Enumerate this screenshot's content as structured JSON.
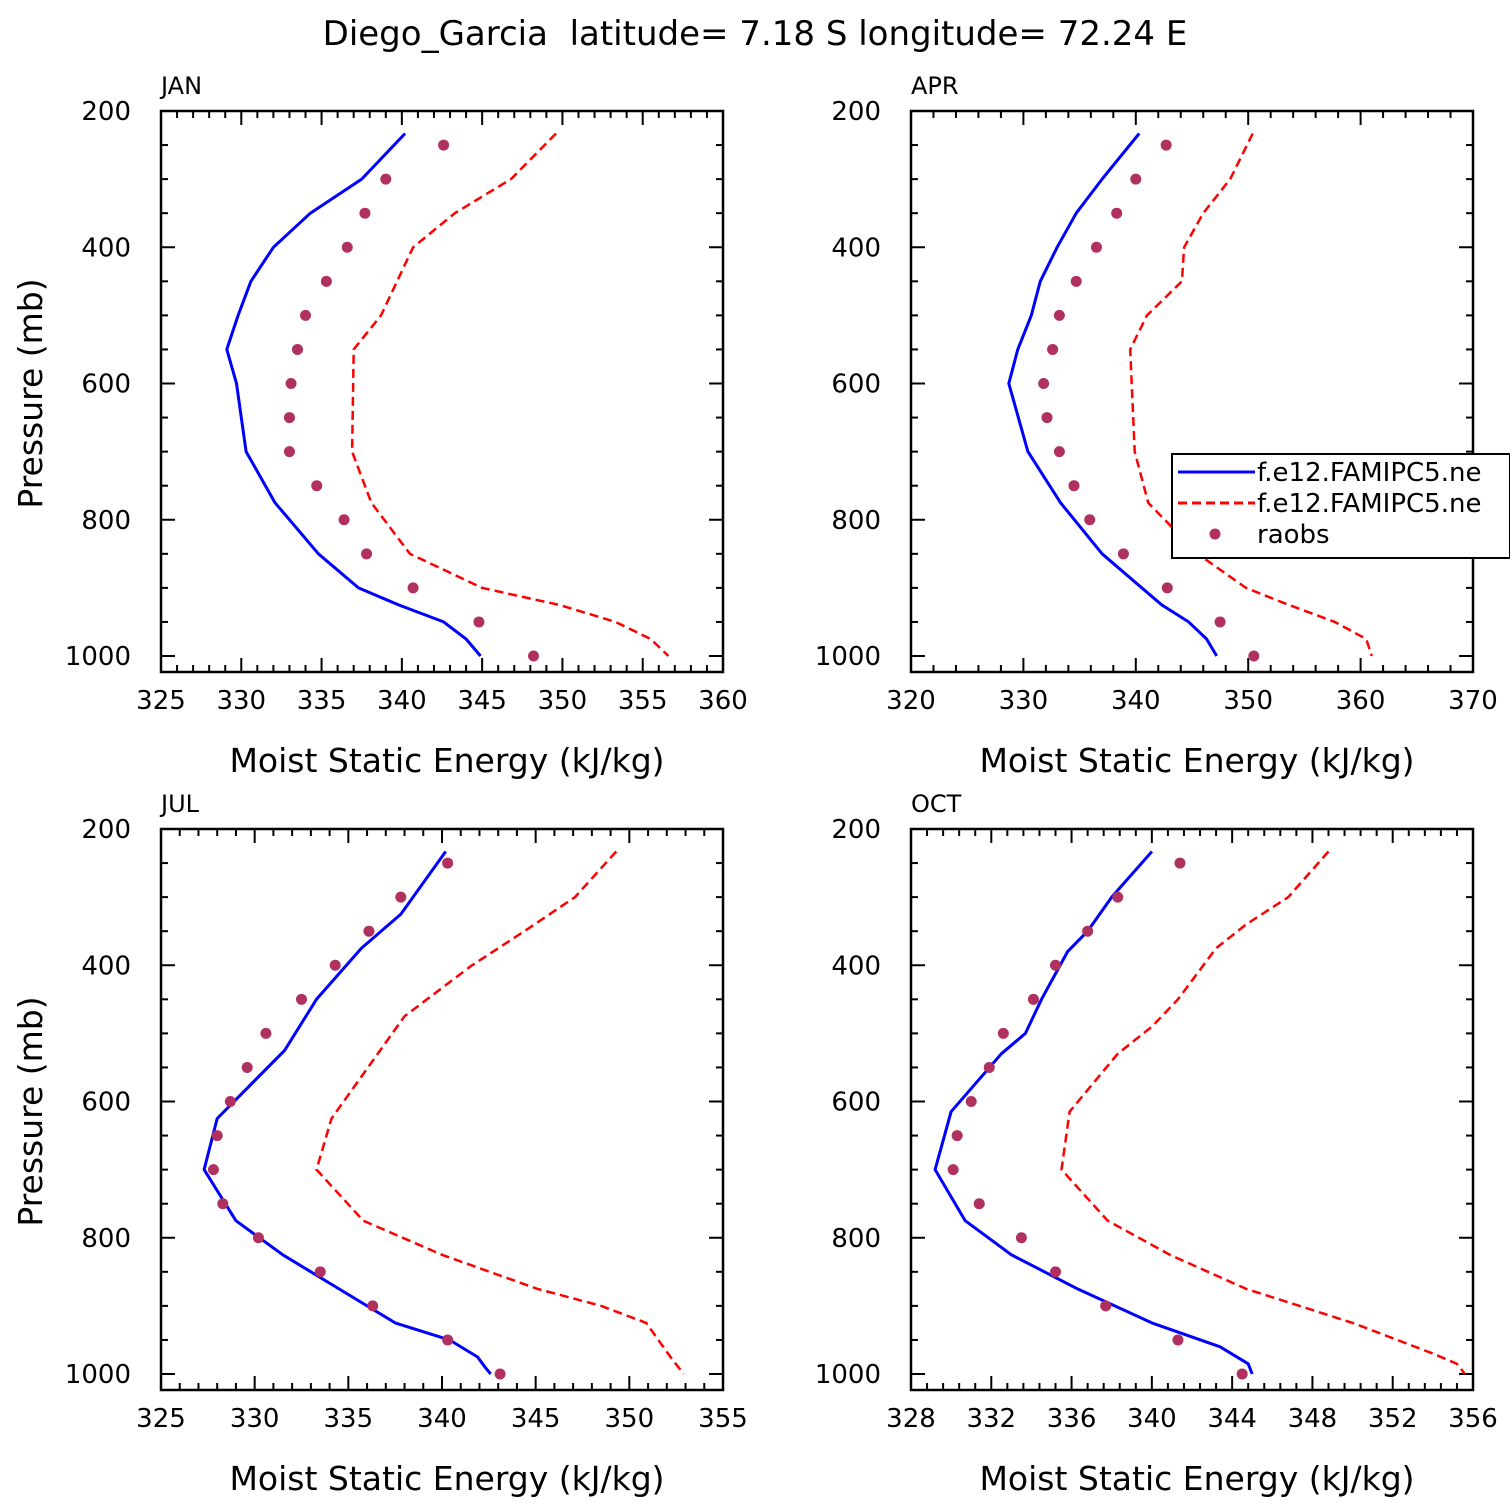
{
  "figure": {
    "title": "Diego_Garcia  latitude= 7.18 S longitude= 72.24 E"
  },
  "colors": {
    "model1": "#0000ff",
    "model2": "#ff0000",
    "obs": "#b03060",
    "axis": "#000000",
    "background": "#ffffff"
  },
  "legend": {
    "panel": "APR",
    "placement": "right edge, middle (clipped)",
    "entries": [
      {
        "label": "f.e12.FAMIPC5.ne",
        "style": "solid-line",
        "color": "#0000ff"
      },
      {
        "label": "f.e12.FAMIPC5.ne",
        "style": "dashed-line",
        "color": "#ff0000"
      },
      {
        "label": "raobs",
        "style": "dot",
        "color": "#b03060"
      }
    ]
  },
  "chart_data": [
    {
      "type": "line",
      "panel_label": "JAN",
      "xlabel": "Moist Static Energy (kJ/kg)",
      "ylabel": "Pressure (mb)",
      "xlim": [
        325,
        360
      ],
      "ylim": [
        1000,
        200
      ],
      "xticks": [
        325,
        330,
        335,
        340,
        345,
        350,
        355,
        360
      ],
      "yticks": [
        200,
        400,
        600,
        800,
        1000
      ],
      "series": [
        {
          "style": "solid",
          "color": "#0000ff",
          "x": [
            340.2,
            337.5,
            334.3,
            332.0,
            330.6,
            329.8,
            329.1,
            329.7,
            330.3,
            332.1,
            334.8,
            337.3,
            339.8,
            342.6,
            344.0,
            344.9
          ],
          "y": [
            233,
            300,
            350,
            400,
            450,
            500,
            550,
            600,
            700,
            775,
            850,
            900,
            925,
            950,
            975,
            1000
          ]
        },
        {
          "style": "dashed",
          "color": "#ff0000",
          "x": [
            349.6,
            346.8,
            343.3,
            340.7,
            338.7,
            337.0,
            336.9,
            338.1,
            340.5,
            345.0,
            349.8,
            353.3,
            355.5,
            356.6
          ],
          "y": [
            233,
            300,
            350,
            400,
            500,
            550,
            700,
            775,
            850,
            900,
            925,
            950,
            975,
            1000
          ]
        },
        {
          "style": "dots",
          "color": "#b03060",
          "x": [
            342.6,
            339.0,
            337.7,
            336.6,
            335.3,
            334.0,
            333.5,
            333.1,
            333.0,
            333.0,
            334.7,
            336.4,
            337.8,
            340.7,
            344.8,
            348.2
          ],
          "y": [
            250,
            300,
            350,
            400,
            450,
            500,
            550,
            600,
            650,
            700,
            750,
            800,
            850,
            900,
            950,
            1000
          ]
        }
      ]
    },
    {
      "type": "line",
      "panel_label": "APR",
      "xlabel": "Moist Static Energy (kJ/kg)",
      "ylabel": "",
      "xlim": [
        320,
        370
      ],
      "ylim": [
        1000,
        200
      ],
      "xticks": [
        320,
        330,
        340,
        350,
        360,
        370
      ],
      "yticks": [
        200,
        400,
        600,
        800,
        1000
      ],
      "series": [
        {
          "style": "solid",
          "color": "#0000ff",
          "x": [
            340.3,
            337.0,
            334.7,
            333.0,
            331.5,
            330.7,
            329.5,
            328.7,
            330.4,
            333.3,
            337.0,
            342.3,
            344.7,
            346.3,
            347.2
          ],
          "y": [
            233,
            300,
            350,
            400,
            450,
            500,
            550,
            600,
            700,
            775,
            850,
            925,
            950,
            975,
            1000
          ]
        },
        {
          "style": "dashed",
          "color": "#ff0000",
          "x": [
            350.4,
            348.4,
            346.0,
            344.3,
            344.1,
            341.0,
            339.5,
            339.9,
            341.1,
            345.5,
            349.8,
            353.6,
            357.7,
            360.5,
            361.0
          ],
          "y": [
            233,
            300,
            350,
            400,
            450,
            500,
            550,
            700,
            775,
            850,
            900,
            925,
            950,
            975,
            1000
          ]
        },
        {
          "style": "dots",
          "color": "#b03060",
          "x": [
            342.7,
            340.0,
            338.3,
            336.5,
            334.7,
            333.2,
            332.6,
            331.8,
            332.1,
            333.2,
            334.5,
            335.9,
            338.9,
            342.8,
            347.5,
            350.5
          ],
          "y": [
            250,
            300,
            350,
            400,
            450,
            500,
            550,
            600,
            650,
            700,
            750,
            800,
            850,
            900,
            950,
            1000
          ]
        }
      ]
    },
    {
      "type": "line",
      "panel_label": "JUL",
      "xlabel": "Moist Static Energy (kJ/kg)",
      "ylabel": "Pressure (mb)",
      "xlim": [
        325,
        355
      ],
      "ylim": [
        1000,
        200
      ],
      "xticks": [
        325,
        330,
        335,
        340,
        345,
        350,
        355
      ],
      "yticks": [
        200,
        400,
        600,
        800,
        1000
      ],
      "series": [
        {
          "style": "solid",
          "color": "#0000ff",
          "x": [
            340.2,
            337.8,
            335.7,
            333.3,
            331.6,
            328.0,
            327.3,
            329.0,
            331.5,
            334.5,
            337.5,
            340.4,
            341.9,
            342.3,
            342.6
          ],
          "y": [
            233,
            325,
            375,
            450,
            525,
            625,
            700,
            775,
            825,
            875,
            925,
            950,
            975,
            990,
            1000
          ]
        },
        {
          "style": "dashed",
          "color": "#ff0000",
          "x": [
            349.3,
            347.1,
            344.4,
            341.6,
            338.0,
            334.1,
            333.3,
            335.8,
            340.0,
            345.1,
            348.5,
            350.9,
            352.2,
            352.9
          ],
          "y": [
            233,
            300,
            350,
            400,
            475,
            625,
            700,
            775,
            825,
            875,
            900,
            925,
            975,
            1000
          ]
        },
        {
          "style": "dots",
          "color": "#b03060",
          "x": [
            340.3,
            337.8,
            336.1,
            334.3,
            332.5,
            330.6,
            329.6,
            328.7,
            328.0,
            327.8,
            328.3,
            330.2,
            333.5,
            336.3,
            340.3,
            343.1
          ],
          "y": [
            250,
            300,
            350,
            400,
            450,
            500,
            550,
            600,
            650,
            700,
            750,
            800,
            850,
            900,
            950,
            1000
          ]
        }
      ]
    },
    {
      "type": "line",
      "panel_label": "OCT",
      "xlabel": "Moist Static Energy (kJ/kg)",
      "ylabel": "",
      "xlim": [
        328,
        356
      ],
      "ylim": [
        1000,
        200
      ],
      "xticks": [
        328,
        332,
        336,
        340,
        344,
        348,
        352,
        356
      ],
      "yticks": [
        200,
        400,
        600,
        800,
        1000
      ],
      "series": [
        {
          "style": "solid",
          "color": "#0000ff",
          "x": [
            340.0,
            338.0,
            336.8,
            335.8,
            334.5,
            333.7,
            332.5,
            330.0,
            329.2,
            330.7,
            333.0,
            336.3,
            340.0,
            343.4,
            344.8,
            345.0
          ],
          "y": [
            233,
            300,
            350,
            380,
            450,
            500,
            530,
            615,
            700,
            775,
            825,
            875,
            925,
            960,
            985,
            1000
          ]
        },
        {
          "style": "dashed",
          "color": "#ff0000",
          "x": [
            348.8,
            346.8,
            344.7,
            343.2,
            341.3,
            340.0,
            338.3,
            335.9,
            335.5,
            337.8,
            340.9,
            344.7,
            350.0,
            354.0,
            355.2,
            355.6
          ],
          "y": [
            233,
            300,
            340,
            375,
            450,
            490,
            530,
            615,
            700,
            775,
            825,
            875,
            925,
            970,
            985,
            1000
          ]
        },
        {
          "style": "dots",
          "color": "#b03060",
          "x": [
            341.4,
            338.3,
            336.8,
            335.2,
            334.1,
            332.6,
            331.9,
            331.0,
            330.3,
            330.1,
            331.4,
            333.5,
            335.2,
            337.7,
            341.3,
            344.5
          ],
          "y": [
            250,
            300,
            350,
            400,
            450,
            500,
            550,
            600,
            650,
            700,
            750,
            800,
            850,
            900,
            950,
            1000
          ]
        }
      ]
    }
  ]
}
